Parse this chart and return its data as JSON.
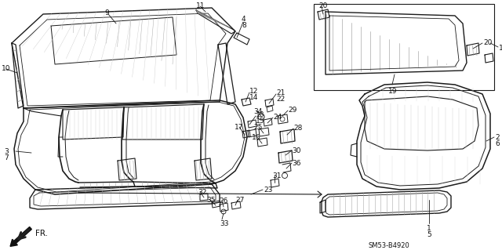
{
  "background_color": "#ffffff",
  "diagram_code": "SM53-B4920",
  "line_color": "#1a1a1a",
  "text_color": "#111111",
  "font_size": 6.5
}
